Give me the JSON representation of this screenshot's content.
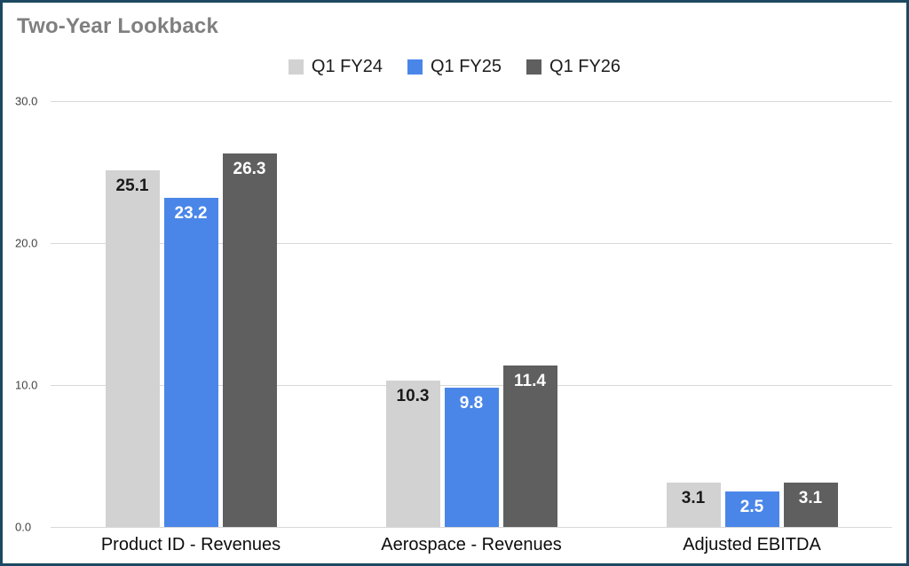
{
  "chart_data": {
    "type": "bar",
    "title": "Two-Year Lookback",
    "categories": [
      "Product ID - Revenues",
      "Aerospace - Revenues",
      "Adjusted EBITDA"
    ],
    "series": [
      {
        "name": "Q1 FY24",
        "color": "#d2d2d2",
        "label_color": "#1a1a1a",
        "values": [
          25.1,
          10.3,
          3.1
        ]
      },
      {
        "name": "Q1 FY25",
        "color": "#4a86e8",
        "label_color": "#ffffff",
        "values": [
          23.2,
          9.8,
          2.5
        ]
      },
      {
        "name": "Q1 FY26",
        "color": "#5f5f5f",
        "label_color": "#ffffff",
        "values": [
          26.3,
          11.4,
          3.1
        ]
      }
    ],
    "ylim": [
      0,
      30
    ],
    "y_ticks": [
      "0.0",
      "10.0",
      "20.0",
      "30.0"
    ],
    "grid": true,
    "legend_position": "top",
    "xlabel": "",
    "ylabel": ""
  },
  "colors": {
    "border": "#1c4961",
    "title_text": "#7f7f7f",
    "gridline": "#d9d9d9",
    "axis_tick_text": "#424242",
    "category_text": "#0d0d0d",
    "legend_text": "#1c1c1c"
  }
}
